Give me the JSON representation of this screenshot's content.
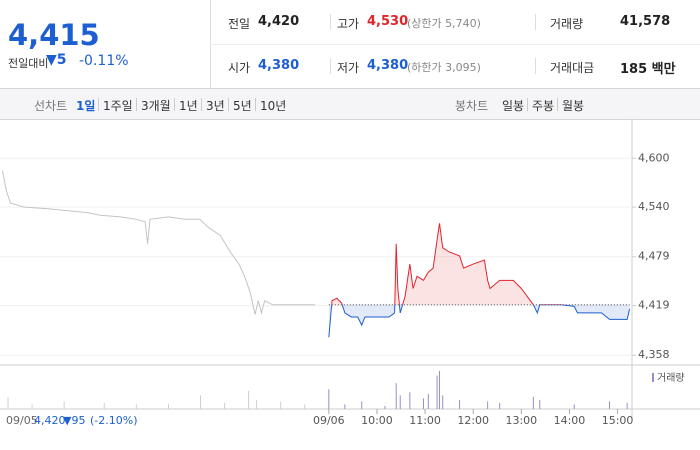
{
  "header": {
    "price": "4,415",
    "change_label": "전일대비",
    "change": "▼5",
    "change_rate": "-0.11%",
    "color": "#1d5fd0"
  },
  "info": {
    "rows": [
      [
        {
          "label": "전일",
          "value": "4,420",
          "color": "#222"
        },
        {
          "label": "고가",
          "value": "4,530",
          "note": "(상한가 5,740)",
          "color": "#e0242a"
        },
        {
          "label": "거래량",
          "value": "41,578",
          "color": "#222"
        }
      ],
      [
        {
          "label": "시가",
          "value": "4,380",
          "color": "#1d5fd0"
        },
        {
          "label": "저가",
          "value": "4,380",
          "note": "(하한가 3,095)",
          "color": "#1d5fd0"
        },
        {
          "label": "거래대금",
          "value": "185 백만",
          "color": "#222"
        }
      ]
    ]
  },
  "tabs": {
    "line": {
      "label": "선차트",
      "items": [
        "1일",
        "1주일",
        "3개월",
        "1년",
        "3년",
        "5년",
        "10년"
      ],
      "selected": 0
    },
    "candle": {
      "label": "봉차트",
      "items": [
        "일봉",
        "주봉",
        "월봉"
      ]
    }
  },
  "chart_data": {
    "type": "line",
    "xlim": [
      -410,
      378
    ],
    "ylim": [
      4346,
      4647
    ],
    "yticks": [
      {
        "value": 4600,
        "label": "4,600"
      },
      {
        "value": 4540,
        "label": "4,540"
      },
      {
        "value": 4479,
        "label": "4,479"
      },
      {
        "value": 4419,
        "label": "4,419"
      },
      {
        "value": 4358,
        "label": "4,358"
      }
    ],
    "xticks": [
      {
        "value": 0,
        "label": "09/06"
      },
      {
        "value": 60,
        "label": "10:00"
      },
      {
        "value": 120,
        "label": "11:00"
      },
      {
        "value": 180,
        "label": "12:00"
      },
      {
        "value": 240,
        "label": "13:00"
      },
      {
        "value": 300,
        "label": "14:00"
      },
      {
        "value": 360,
        "label": "15:00"
      }
    ],
    "reference": 4420,
    "up_color": "#e0242a",
    "down_color": "#1d5fd0",
    "series": [
      {
        "color": "#c4c4c4",
        "x": [
          -407,
          -402,
          -397,
          -380,
          -350,
          -320,
          -300,
          -285,
          -260,
          -240,
          -229,
          -226,
          -223,
          -200,
          -180,
          -161,
          -150,
          -135,
          -123,
          -112,
          -105,
          -98,
          -92,
          -88,
          -84,
          -80,
          -70,
          -40,
          -17
        ],
        "values": [
          4585,
          4560,
          4545,
          4540,
          4538,
          4535,
          4533,
          4530,
          4528,
          4525,
          4522,
          4495,
          4525,
          4528,
          4525,
          4525,
          4515,
          4505,
          4485,
          4470,
          4455,
          4435,
          4408,
          4425,
          4410,
          4425,
          4420,
          4420,
          4420
        ]
      },
      {
        "color": "#e0242a",
        "x": [
          0,
          4,
          10,
          16,
          20,
          28,
          36,
          41,
          45,
          60,
          75,
          82,
          84,
          86,
          89,
          95,
          101,
          105,
          110,
          118,
          124,
          130,
          135,
          138,
          142,
          150,
          163,
          168,
          180,
          194,
          198,
          201,
          213,
          230,
          240,
          255,
          260,
          263,
          290,
          306,
          310,
          340,
          350,
          372,
          375
        ],
        "values": [
          4380,
          4425,
          4428,
          4422,
          4410,
          4405,
          4405,
          4395,
          4405,
          4405,
          4405,
          4410,
          4495,
          4440,
          4410,
          4430,
          4470,
          4440,
          4455,
          4450,
          4460,
          4465,
          4500,
          4520,
          4490,
          4485,
          4480,
          4465,
          4470,
          4475,
          4450,
          4440,
          4450,
          4450,
          4440,
          4420,
          4410,
          4420,
          4420,
          4418,
          4410,
          4410,
          4402,
          4402,
          4415
        ]
      }
    ],
    "volume": {
      "label": "거래량",
      "prev": {
        "color": "#cfcfcf",
        "x": [
          -400,
          -370,
          -330,
          -280,
          -240,
          -200,
          -160,
          -130,
          -100,
          -90,
          -60,
          -30
        ],
        "values": [
          800,
          300,
          500,
          400,
          300,
          350,
          900,
          400,
          1200,
          600,
          500,
          300
        ]
      },
      "today": {
        "color": "#9b8cc8",
        "x": [
          0,
          20,
          41,
          70,
          84,
          89,
          101,
          118,
          124,
          135,
          138,
          142,
          163,
          198,
          213,
          255,
          263,
          306,
          350,
          372
        ],
        "values": [
          1300,
          300,
          500,
          200,
          1700,
          900,
          1100,
          700,
          1000,
          2200,
          2500,
          900,
          600,
          500,
          400,
          800,
          600,
          300,
          500,
          400
        ]
      }
    },
    "status": {
      "date": "09/05",
      "price": "4,420",
      "change": "▼95",
      "rate": "(-2.10%)"
    }
  }
}
